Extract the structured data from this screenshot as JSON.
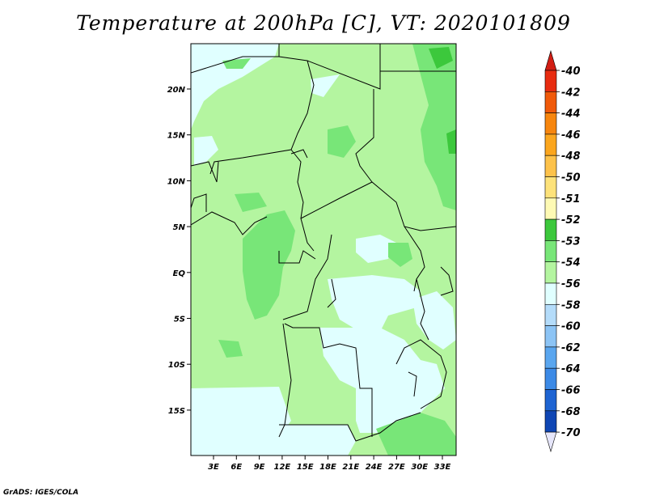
{
  "title": "Temperature at 200hPa [C], VT: 2020101809",
  "footer": "GrADS: IGES/COLA",
  "map": {
    "lon_labels": [
      "3E",
      "6E",
      "9E",
      "12E",
      "15E",
      "18E",
      "21E",
      "24E",
      "27E",
      "30E",
      "33E"
    ],
    "lat_labels": [
      "20N",
      "15N",
      "10N",
      "5N",
      "EQ",
      "5S",
      "10S",
      "15S"
    ]
  },
  "colorbar": {
    "levels": [
      {
        "label": "-40",
        "color": "#e82c10"
      },
      {
        "label": "-42",
        "color": "#f05a0a"
      },
      {
        "label": "-44",
        "color": "#f7860e"
      },
      {
        "label": "-46",
        "color": "#fba61e"
      },
      {
        "label": "-48",
        "color": "#fdc24a"
      },
      {
        "label": "-50",
        "color": "#fde27a"
      },
      {
        "label": "-51",
        "color": "#fefab4"
      },
      {
        "label": "-52",
        "color": "#3cc83c"
      },
      {
        "label": "-53",
        "color": "#78e678"
      },
      {
        "label": "-54",
        "color": "#b4f5a0"
      },
      {
        "label": "-56",
        "color": "#e0ffff"
      },
      {
        "label": "-58",
        "color": "#b4dcfa"
      },
      {
        "label": "-60",
        "color": "#8cc4f5"
      },
      {
        "label": "-62",
        "color": "#5aa6ef"
      },
      {
        "label": "-64",
        "color": "#3c8ae6"
      },
      {
        "label": "-66",
        "color": "#1e64d2"
      },
      {
        "label": "-68",
        "color": "#0f46b4"
      },
      {
        "label": "-70",
        "color": "#08288c"
      }
    ],
    "top_color": "#d21e14",
    "bottom_color": "#e6e6fa"
  }
}
